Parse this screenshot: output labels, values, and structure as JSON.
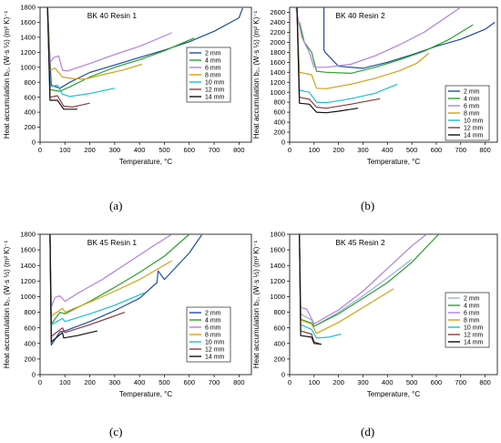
{
  "figure": {
    "captions": [
      "(a)",
      "(b)",
      "(c)",
      "(d)"
    ]
  },
  "chart_data": [
    {
      "type": "line",
      "title": "BK 40  Resin 1",
      "xlabel": "Temperature, °C",
      "ylabel": "Heat accumulation b₂, (W·s ½)  (m² K)⁻¹",
      "xlim": [
        0,
        850
      ],
      "ylim": [
        0,
        1800
      ],
      "xticks": [
        0,
        100,
        200,
        300,
        400,
        500,
        600,
        700,
        800
      ],
      "yticks": [
        0,
        200,
        400,
        600,
        800,
        1000,
        1200,
        1400,
        1600,
        1800
      ],
      "legend": "right",
      "series": [
        {
          "name": "2 mm",
          "color": "#1f4e9e",
          "x": [
            30,
            45,
            80,
            120,
            200,
            300,
            400,
            500,
            600,
            700,
            800,
            815
          ],
          "y": [
            1800,
            760,
            720,
            800,
            930,
            1030,
            1130,
            1230,
            1340,
            1480,
            1660,
            1790
          ]
        },
        {
          "name": "4 mm",
          "color": "#2ca02c",
          "x": [
            30,
            40,
            80,
            120,
            200,
            300,
            400,
            500,
            620
          ],
          "y": [
            1800,
            700,
            680,
            740,
            870,
            1000,
            1100,
            1220,
            1390
          ]
        },
        {
          "name": "6 mm",
          "color": "#b07fe0",
          "x": [
            30,
            40,
            55,
            75,
            90,
            110,
            200,
            300,
            400,
            530
          ],
          "y": [
            1800,
            1060,
            1130,
            1150,
            960,
            950,
            1050,
            1170,
            1280,
            1460
          ]
        },
        {
          "name": "8 mm",
          "color": "#d4a017",
          "x": [
            30,
            40,
            60,
            90,
            130,
            180,
            250,
            330,
            410
          ],
          "y": [
            1800,
            960,
            990,
            870,
            850,
            840,
            900,
            960,
            1040
          ]
        },
        {
          "name": "10 mm",
          "color": "#17c0d0",
          "x": [
            30,
            40,
            70,
            90,
            120,
            200,
            300
          ],
          "y": [
            1800,
            740,
            760,
            640,
            610,
            650,
            720
          ]
        },
        {
          "name": "12 mm",
          "color": "#8b3a3a",
          "x": [
            30,
            40,
            70,
            95,
            130,
            200
          ],
          "y": [
            1800,
            600,
            620,
            480,
            470,
            520
          ]
        },
        {
          "name": "14 mm",
          "color": "#111111",
          "x": [
            30,
            40,
            70,
            95,
            150
          ],
          "y": [
            1800,
            560,
            560,
            440,
            440
          ]
        }
      ]
    },
    {
      "type": "line",
      "title": "BK 40  Resin 2",
      "xlabel": "Temperature, °C",
      "ylabel": "Heat accumulation b₂, (W·s ½)  (m² K)⁻¹",
      "xlim": [
        0,
        850
      ],
      "ylim": [
        0,
        2700
      ],
      "xticks": [
        0,
        100,
        200,
        300,
        400,
        500,
        600,
        700,
        800
      ],
      "yticks": [
        0,
        200,
        400,
        600,
        800,
        1000,
        1200,
        1400,
        1600,
        1800,
        2000,
        2200,
        2400,
        2600
      ],
      "legend": "right",
      "series": [
        {
          "name": "2 mm",
          "color": "#1f4e9e",
          "x": [
            140,
            140,
            145,
            200,
            300,
            400,
            500,
            600,
            700,
            800,
            840
          ],
          "y": [
            2700,
            1850,
            1800,
            1520,
            1480,
            1600,
            1750,
            1920,
            2060,
            2260,
            2400
          ]
        },
        {
          "name": "4 mm",
          "color": "#2ca02c",
          "x": [
            40,
            60,
            90,
            110,
            150,
            250,
            350,
            450,
            550,
            650,
            750
          ],
          "y": [
            2400,
            2000,
            1800,
            1420,
            1400,
            1380,
            1500,
            1650,
            1820,
            2050,
            2350
          ]
        },
        {
          "name": "6 mm",
          "color": "#b07fe0",
          "x": [
            25,
            50,
            80,
            100,
            150,
            250,
            350,
            450,
            550,
            700
          ],
          "y": [
            2700,
            2100,
            1800,
            1500,
            1500,
            1560,
            1730,
            1950,
            2200,
            2700
          ]
        },
        {
          "name": "8 mm",
          "color": "#d4a017",
          "x": [
            30,
            40,
            90,
            110,
            150,
            250,
            350,
            450,
            520,
            570
          ],
          "y": [
            2700,
            1400,
            1350,
            1080,
            1070,
            1160,
            1280,
            1430,
            1580,
            1780
          ]
        },
        {
          "name": "10 mm",
          "color": "#17c0d0",
          "x": [
            30,
            40,
            80,
            110,
            150,
            250,
            350,
            440
          ],
          "y": [
            2700,
            1040,
            1000,
            800,
            790,
            870,
            980,
            1160
          ]
        },
        {
          "name": "12 mm",
          "color": "#8b3a3a",
          "x": [
            30,
            40,
            80,
            110,
            150,
            250,
            370
          ],
          "y": [
            2700,
            900,
            860,
            700,
            680,
            760,
            870
          ]
        },
        {
          "name": "14 mm",
          "color": "#111111",
          "x": [
            30,
            40,
            80,
            110,
            150,
            200,
            280
          ],
          "y": [
            2700,
            780,
            760,
            600,
            590,
            620,
            680
          ]
        }
      ]
    },
    {
      "type": "line",
      "title": "BK 45  Resin 1",
      "xlabel": "Temperature, °C",
      "ylabel": "Heat accumulation b₂, (W·s ½)  (m² K)⁻¹",
      "xlim": [
        0,
        850
      ],
      "ylim": [
        0,
        1800
      ],
      "xticks": [
        0,
        100,
        200,
        300,
        400,
        500,
        600,
        700,
        800
      ],
      "yticks": [
        0,
        200,
        400,
        600,
        800,
        1000,
        1200,
        1400,
        1600,
        1800
      ],
      "legend": "right",
      "series": [
        {
          "name": "2 mm",
          "color": "#1f4e9e",
          "x": [
            40,
            45,
            80,
            100,
            200,
            300,
            400,
            470,
            475,
            500,
            600,
            650
          ],
          "y": [
            1800,
            380,
            550,
            560,
            680,
            820,
            980,
            1180,
            1330,
            1220,
            1560,
            1790
          ]
        },
        {
          "name": "4 mm",
          "color": "#2ca02c",
          "x": [
            40,
            45,
            80,
            100,
            200,
            300,
            400,
            500,
            600
          ],
          "y": [
            1800,
            650,
            800,
            780,
            940,
            1120,
            1310,
            1520,
            1800
          ]
        },
        {
          "name": "6 mm",
          "color": "#b07fe0",
          "x": [
            40,
            45,
            60,
            80,
            100,
            150,
            250,
            350,
            450,
            530
          ],
          "y": [
            1800,
            870,
            990,
            1010,
            940,
            1040,
            1220,
            1430,
            1640,
            1800
          ]
        },
        {
          "name": "8 mm",
          "color": "#d4a017",
          "x": [
            40,
            45,
            90,
            100,
            200,
            300,
            400,
            530
          ],
          "y": [
            1800,
            750,
            850,
            800,
            930,
            1070,
            1220,
            1460
          ]
        },
        {
          "name": "10 mm",
          "color": "#17c0d0",
          "x": [
            40,
            45,
            90,
            100,
            200,
            300,
            420
          ],
          "y": [
            1800,
            640,
            720,
            680,
            780,
            890,
            1050
          ]
        },
        {
          "name": "12 mm",
          "color": "#8b3a3a",
          "x": [
            40,
            45,
            90,
            100,
            200,
            280,
            340
          ],
          "y": [
            1800,
            490,
            600,
            540,
            640,
            730,
            800
          ]
        },
        {
          "name": "14 mm",
          "color": "#111111",
          "x": [
            40,
            45,
            90,
            95,
            150,
            230
          ],
          "y": [
            1800,
            420,
            540,
            470,
            500,
            560
          ]
        }
      ]
    },
    {
      "type": "line",
      "title": "BK 45  Resin 2",
      "xlabel": "Temperature, °C",
      "ylabel": "Heat accumulation b₂, (W·s ½)  (m² K)⁻¹",
      "xlim": [
        0,
        850
      ],
      "ylim": [
        0,
        1800
      ],
      "xticks": [
        0,
        100,
        200,
        300,
        400,
        500,
        600,
        700,
        800
      ],
      "yticks": [
        0,
        200,
        400,
        600,
        800,
        1000,
        1200,
        1400,
        1600,
        1800
      ],
      "legend": "right",
      "series": [
        {
          "name": "2 mm",
          "color": "#9ab0e0",
          "x": [
            40,
            45,
            90,
            100,
            200,
            300,
            400,
            500
          ],
          "y": [
            1800,
            780,
            700,
            620,
            800,
            1010,
            1240,
            1480
          ]
        },
        {
          "name": "4 mm",
          "color": "#2ca02c",
          "x": [
            40,
            45,
            90,
            100,
            200,
            300,
            400,
            500,
            610
          ],
          "y": [
            1800,
            710,
            660,
            620,
            780,
            980,
            1180,
            1440,
            1800
          ]
        },
        {
          "name": "6 mm",
          "color": "#b07fe0",
          "x": [
            40,
            45,
            70,
            100,
            200,
            300,
            400,
            500,
            560
          ],
          "y": [
            1800,
            860,
            840,
            650,
            830,
            1070,
            1360,
            1650,
            1800
          ]
        },
        {
          "name": "8 mm",
          "color": "#d4a017",
          "x": [
            40,
            45,
            90,
            110,
            200,
            300,
            425
          ],
          "y": [
            1800,
            700,
            650,
            530,
            670,
            860,
            1100
          ]
        },
        {
          "name": "10 mm",
          "color": "#17c0d0",
          "x": [
            40,
            45,
            90,
            110,
            160,
            210
          ],
          "y": [
            1800,
            640,
            580,
            470,
            480,
            520
          ]
        },
        {
          "name": "12 mm",
          "color": "#8b3a3a",
          "x": [
            40,
            45,
            90,
            100,
            120
          ],
          "y": [
            1800,
            560,
            520,
            420,
            400
          ]
        },
        {
          "name": "14 mm",
          "color": "#111111",
          "x": [
            40,
            45,
            90,
            100,
            130
          ],
          "y": [
            1800,
            500,
            480,
            400,
            390
          ]
        }
      ]
    }
  ]
}
